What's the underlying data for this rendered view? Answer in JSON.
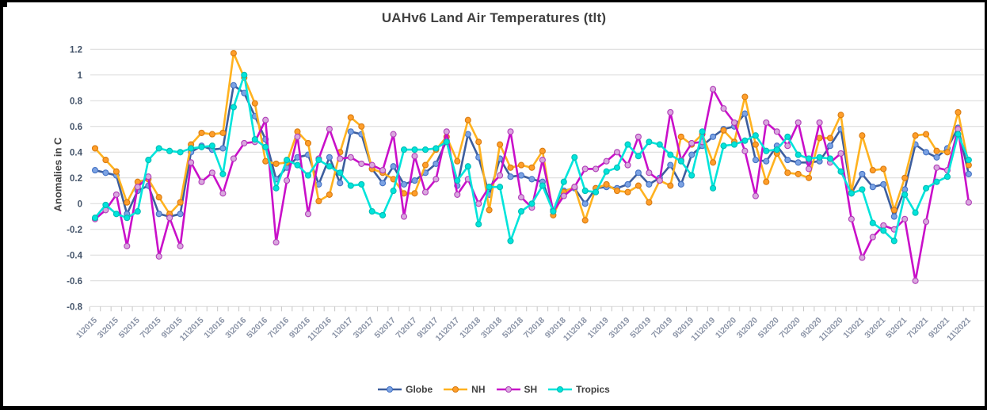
{
  "chart_data": {
    "type": "line",
    "title": "UAHv6 Land Air Temperatures (tlt)",
    "xlabel": "",
    "ylabel": "Anomalies in C",
    "ylim": [
      -0.8,
      1.2
    ],
    "grid": "horizontal-only",
    "legend_position": "bottom-center",
    "x_start": "1\\2015",
    "x_end": "11\\2021",
    "n_points": 83,
    "ytick_labels": [
      "1.2",
      "1",
      "0.8",
      "0.6",
      "0.4",
      "0.2",
      "0",
      "-0.2",
      "-0.4",
      "-0.6",
      "-0.8"
    ],
    "yticks": [
      1.2,
      1.0,
      0.8,
      0.6,
      0.4,
      0.2,
      0.0,
      -0.2,
      -0.4,
      -0.6,
      -0.8
    ],
    "xtick_every": 2,
    "xtick_labels": [
      "1\\2015",
      "3\\2015",
      "5\\2015",
      "7\\2015",
      "9\\2015",
      "11\\2015",
      "1\\2016",
      "3\\2016",
      "5\\2016",
      "7\\2016",
      "9\\2016",
      "11\\2016",
      "1\\2017",
      "3\\2017",
      "5\\2017",
      "7\\2017",
      "9\\2017",
      "11\\2017",
      "1\\2018",
      "3\\2018",
      "5\\2018",
      "7\\2018",
      "9\\2018",
      "11\\2018",
      "1\\2019",
      "3\\2019",
      "5\\2019",
      "7\\2019",
      "9\\2019",
      "11\\2019",
      "1\\2020",
      "3\\2020",
      "5\\2020",
      "7\\2020",
      "9\\2020",
      "11\\2020",
      "1\\2021",
      "3\\2021",
      "5\\2021",
      "7\\2021",
      "9\\2021",
      "11\\2021"
    ],
    "series": [
      {
        "name": "Globe",
        "line_color": "#3D5E9E",
        "marker_color": "#7BA2E3",
        "marker_stroke": "#4472C4",
        "values": [
          0.26,
          0.24,
          0.22,
          -0.08,
          0.1,
          0.14,
          -0.08,
          -0.1,
          -0.08,
          0.4,
          0.45,
          0.42,
          0.43,
          0.92,
          0.86,
          0.68,
          0.5,
          0.19,
          0.28,
          0.36,
          0.38,
          0.15,
          0.36,
          0.16,
          0.56,
          0.54,
          0.27,
          0.16,
          0.29,
          0.15,
          0.18,
          0.24,
          0.31,
          0.49,
          0.14,
          0.54,
          0.36,
          0.07,
          0.35,
          0.21,
          0.22,
          0.19,
          0.17,
          -0.05,
          0.1,
          0.12,
          0.0,
          0.12,
          0.13,
          0.12,
          0.15,
          0.24,
          0.15,
          0.2,
          0.3,
          0.15,
          0.38,
          0.45,
          0.52,
          0.58,
          0.6,
          0.7,
          0.34,
          0.33,
          0.45,
          0.34,
          0.32,
          0.32,
          0.33,
          0.45,
          0.58,
          0.08,
          0.23,
          0.13,
          0.15,
          -0.1,
          0.11,
          0.46,
          0.4,
          0.36,
          0.43,
          0.59,
          0.23
        ]
      },
      {
        "name": "NH",
        "line_color": "#FFB21F",
        "marker_color": "#FF9E2A",
        "marker_stroke": "#D97C11",
        "values": [
          0.43,
          0.34,
          0.25,
          0.01,
          0.17,
          0.19,
          0.05,
          -0.08,
          0.01,
          0.46,
          0.55,
          0.54,
          0.55,
          1.17,
          0.98,
          0.78,
          0.33,
          0.31,
          0.32,
          0.56,
          0.47,
          0.02,
          0.07,
          0.4,
          0.67,
          0.6,
          0.27,
          0.24,
          0.19,
          0.08,
          0.08,
          0.3,
          0.42,
          0.52,
          0.33,
          0.65,
          0.48,
          -0.05,
          0.46,
          0.28,
          0.3,
          0.28,
          0.41,
          -0.09,
          0.09,
          0.13,
          -0.13,
          0.12,
          0.15,
          0.1,
          0.09,
          0.14,
          0.01,
          0.18,
          0.14,
          0.52,
          0.46,
          0.54,
          0.32,
          0.57,
          0.48,
          0.83,
          0.46,
          0.17,
          0.39,
          0.24,
          0.23,
          0.2,
          0.51,
          0.51,
          0.69,
          0.09,
          0.53,
          0.26,
          0.27,
          -0.05,
          0.2,
          0.53,
          0.54,
          0.41,
          0.4,
          0.71,
          0.3
        ]
      },
      {
        "name": "SH",
        "line_color": "#C90FC9",
        "marker_color": "#D9A7DE",
        "marker_stroke": "#B13FB8",
        "values": [
          -0.12,
          -0.05,
          0.07,
          -0.33,
          0.13,
          0.21,
          -0.41,
          -0.11,
          -0.33,
          0.32,
          0.17,
          0.24,
          0.08,
          0.35,
          0.47,
          0.48,
          0.65,
          -0.3,
          0.18,
          0.52,
          -0.08,
          0.35,
          0.58,
          0.35,
          0.36,
          0.31,
          0.3,
          0.26,
          0.54,
          -0.1,
          0.37,
          0.09,
          0.19,
          0.56,
          0.07,
          0.19,
          0.0,
          0.13,
          0.22,
          0.56,
          0.05,
          -0.03,
          0.34,
          -0.06,
          0.06,
          0.13,
          0.27,
          0.27,
          0.33,
          0.4,
          0.3,
          0.52,
          0.24,
          0.18,
          0.71,
          0.34,
          0.47,
          0.48,
          0.89,
          0.74,
          0.63,
          0.41,
          0.06,
          0.63,
          0.56,
          0.45,
          0.63,
          0.27,
          0.63,
          0.32,
          0.39,
          -0.12,
          -0.42,
          -0.26,
          -0.17,
          -0.2,
          -0.12,
          -0.6,
          -0.14,
          0.28,
          0.26,
          0.58,
          0.01
        ]
      },
      {
        "name": "Tropics",
        "line_color": "#00E4DB",
        "marker_color": "#00E4DB",
        "marker_stroke": "#00BDB4",
        "values": [
          -0.11,
          -0.01,
          -0.08,
          -0.11,
          -0.06,
          0.34,
          0.43,
          0.41,
          0.4,
          0.43,
          0.44,
          0.45,
          0.23,
          0.75,
          1.0,
          0.5,
          0.44,
          0.12,
          0.34,
          0.3,
          0.22,
          0.34,
          0.29,
          0.24,
          0.14,
          0.15,
          -0.06,
          -0.09,
          0.1,
          0.42,
          0.42,
          0.42,
          0.43,
          0.48,
          0.18,
          0.29,
          -0.16,
          0.13,
          0.13,
          -0.29,
          -0.06,
          0.0,
          0.14,
          -0.06,
          0.17,
          0.36,
          0.1,
          0.09,
          0.25,
          0.28,
          0.46,
          0.37,
          0.48,
          0.46,
          0.38,
          0.33,
          0.22,
          0.56,
          0.12,
          0.45,
          0.46,
          0.49,
          0.53,
          0.41,
          0.42,
          0.52,
          0.38,
          0.35,
          0.36,
          0.35,
          0.25,
          0.08,
          0.11,
          -0.15,
          -0.21,
          -0.29,
          0.07,
          -0.07,
          0.12,
          0.17,
          0.21,
          0.54,
          0.34
        ]
      }
    ],
    "style": {
      "gridline_color": "#D9D9D9",
      "axis_color": "#C6C6C6",
      "ytick_label_color": "#44546A",
      "xtick_label_color": "#8A93A6",
      "title_color": "#404040",
      "background": "#FFFFFF",
      "border_color": "#000000"
    }
  }
}
